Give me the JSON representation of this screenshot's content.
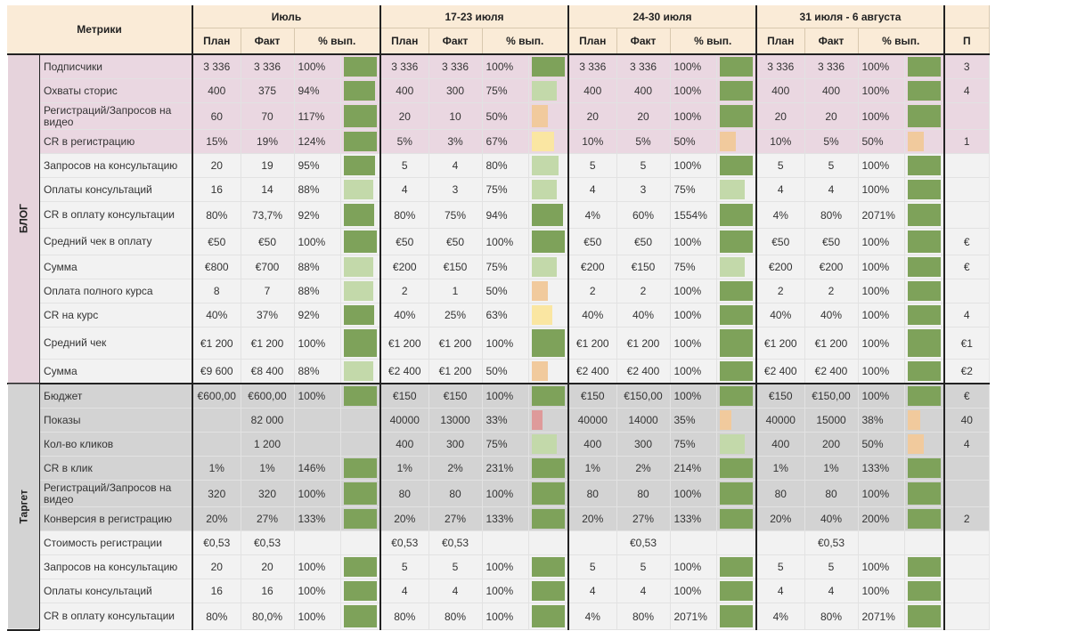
{
  "header": {
    "metrics_label": "Метрики",
    "periods": [
      "Июль",
      "17-23 июля",
      "24-30 июля",
      "31 июля - 6 августа",
      ""
    ],
    "plan_label": "План",
    "fact_label": "Факт",
    "pct_label": "% вып.",
    "partial_col": "П"
  },
  "colors": {
    "full": "#7ea25a",
    "light_green": "#c3d9aa",
    "peach": "#f1ca9d",
    "yellow": "#fae6a2",
    "red": "#de9a9a",
    "header_bg": "#faebd7",
    "blog_highlight": "#ead7e1",
    "target_highlight": "#d3d3d3"
  },
  "sections": [
    {
      "name": "БЛОГ",
      "rows": [
        {
          "label": "Подписчики",
          "hl": true,
          "cells": [
            [
              "3 336",
              "3 336",
              "100%",
              "full",
              1
            ],
            [
              "3 336",
              "3 336",
              "100%",
              "full",
              1
            ],
            [
              "3 336",
              "3 336",
              "100%",
              "full",
              1
            ],
            [
              "3 336",
              "3 336",
              "100%",
              "full",
              1
            ]
          ],
          "partial": "3"
        },
        {
          "label": "Охваты сторис",
          "hl": true,
          "cells": [
            [
              "400",
              "375",
              "94%",
              "full",
              0.94
            ],
            [
              "400",
              "300",
              "75%",
              "light_green",
              0.75
            ],
            [
              "400",
              "400",
              "100%",
              "full",
              1
            ],
            [
              "400",
              "400",
              "100%",
              "full",
              1
            ]
          ],
          "partial": "4"
        },
        {
          "label": "Регистраций/Запросов на видео",
          "hl": true,
          "tall": true,
          "cells": [
            [
              "60",
              "70",
              "117%",
              "full",
              1
            ],
            [
              "20",
              "10",
              "50%",
              "peach",
              0.5
            ],
            [
              "20",
              "20",
              "100%",
              "full",
              1
            ],
            [
              "20",
              "20",
              "100%",
              "full",
              1
            ]
          ],
          "partial": ""
        },
        {
          "label": "CR в регистрацию",
          "hl": true,
          "cells": [
            [
              "15%",
              "19%",
              "124%",
              "full",
              1
            ],
            [
              "5%",
              "3%",
              "67%",
              "yellow",
              0.67
            ],
            [
              "10%",
              "5%",
              "50%",
              "peach",
              0.5
            ],
            [
              "10%",
              "5%",
              "50%",
              "peach",
              0.5
            ]
          ],
          "partial": "1"
        },
        {
          "label": "Запросов на консультацию",
          "hl": false,
          "cells": [
            [
              "20",
              "19",
              "95%",
              "full",
              0.95
            ],
            [
              "5",
              "4",
              "80%",
              "light_green",
              0.8
            ],
            [
              "5",
              "5",
              "100%",
              "full",
              1
            ],
            [
              "5",
              "5",
              "100%",
              "full",
              1
            ]
          ],
          "partial": ""
        },
        {
          "label": "Оплаты консультаций",
          "hl": false,
          "cells": [
            [
              "16",
              "14",
              "88%",
              "light_green",
              0.88
            ],
            [
              "4",
              "3",
              "75%",
              "light_green",
              0.75
            ],
            [
              "4",
              "3",
              "75%",
              "light_green",
              0.75
            ],
            [
              "4",
              "4",
              "100%",
              "full",
              1
            ]
          ],
          "partial": ""
        },
        {
          "label": "CR в оплату консультации",
          "hl": false,
          "tall": true,
          "cells": [
            [
              "80%",
              "73,7%",
              "92%",
              "full",
              0.92
            ],
            [
              "80%",
              "75%",
              "94%",
              "full",
              0.94
            ],
            [
              "4%",
              "60%",
              "1554%",
              "full",
              1
            ],
            [
              "4%",
              "80%",
              "2071%",
              "full",
              1
            ]
          ],
          "partial": ""
        },
        {
          "label": "Средний чек в оплату",
          "hl": false,
          "tall": true,
          "cells": [
            [
              "€50",
              "€50",
              "100%",
              "full",
              1
            ],
            [
              "€50",
              "€50",
              "100%",
              "full",
              1
            ],
            [
              "€50",
              "€50",
              "100%",
              "full",
              1
            ],
            [
              "€50",
              "€50",
              "100%",
              "full",
              1
            ]
          ],
          "partial": "€"
        },
        {
          "label": "Сумма",
          "hl": false,
          "cells": [
            [
              "€800",
              "€700",
              "88%",
              "light_green",
              0.88
            ],
            [
              "€200",
              "€150",
              "75%",
              "light_green",
              0.75
            ],
            [
              "€200",
              "€150",
              "75%",
              "light_green",
              0.75
            ],
            [
              "€200",
              "€200",
              "100%",
              "full",
              1
            ]
          ],
          "partial": "€"
        },
        {
          "label": "Оплата полного курса",
          "hl": false,
          "cells": [
            [
              "8",
              "7",
              "88%",
              "light_green",
              0.88
            ],
            [
              "2",
              "1",
              "50%",
              "peach",
              0.5
            ],
            [
              "2",
              "2",
              "100%",
              "full",
              1
            ],
            [
              "2",
              "2",
              "100%",
              "full",
              1
            ]
          ],
          "partial": ""
        },
        {
          "label": "CR на курс",
          "hl": false,
          "cells": [
            [
              "40%",
              "37%",
              "92%",
              "full",
              0.92
            ],
            [
              "40%",
              "25%",
              "63%",
              "yellow",
              0.63
            ],
            [
              "40%",
              "40%",
              "100%",
              "full",
              1
            ],
            [
              "40%",
              "40%",
              "100%",
              "full",
              1
            ]
          ],
          "partial": "4"
        },
        {
          "label": "Средний чек",
          "hl": false,
          "xtall": true,
          "cells": [
            [
              "€1 200",
              "€1 200",
              "100%",
              "full",
              1
            ],
            [
              "€1 200",
              "€1 200",
              "100%",
              "full",
              1
            ],
            [
              "€1 200",
              "€1 200",
              "100%",
              "full",
              1
            ],
            [
              "€1 200",
              "€1 200",
              "100%",
              "full",
              1
            ]
          ],
          "partial": "€1"
        },
        {
          "label": "Сумма",
          "hl": false,
          "cells": [
            [
              "€9 600",
              "€8 400",
              "88%",
              "light_green",
              0.88
            ],
            [
              "€2 400",
              "€1 200",
              "50%",
              "peach",
              0.5
            ],
            [
              "€2 400",
              "€2 400",
              "100%",
              "full",
              1
            ],
            [
              "€2 400",
              "€2 400",
              "100%",
              "full",
              1
            ]
          ],
          "partial": "€2"
        }
      ]
    },
    {
      "name": "Таргет",
      "rows": [
        {
          "label": "Бюджет",
          "hl": true,
          "cells": [
            [
              "€600,00",
              "€600,00",
              "100%",
              "full",
              1
            ],
            [
              "€150",
              "€150",
              "100%",
              "full",
              1
            ],
            [
              "€150",
              "€150,00",
              "100%",
              "full",
              1
            ],
            [
              "€150",
              "€150,00",
              "100%",
              "full",
              1
            ]
          ],
          "partial": "€"
        },
        {
          "label": "Показы",
          "hl": true,
          "cells": [
            [
              "",
              "82 000",
              "",
              "",
              0
            ],
            [
              "40000",
              "13000",
              "33%",
              "red",
              0.33
            ],
            [
              "40000",
              "14000",
              "35%",
              "peach",
              0.35
            ],
            [
              "40000",
              "15000",
              "38%",
              "peach",
              0.38
            ]
          ],
          "partial": "40"
        },
        {
          "label": "Кол-во кликов",
          "hl": true,
          "cells": [
            [
              "",
              "1 200",
              "",
              "",
              0
            ],
            [
              "400",
              "300",
              "75%",
              "light_green",
              0.75
            ],
            [
              "400",
              "300",
              "75%",
              "light_green",
              0.75
            ],
            [
              "400",
              "200",
              "50%",
              "peach",
              0.5
            ]
          ],
          "partial": "4"
        },
        {
          "label": "CR в клик",
          "hl": true,
          "cells": [
            [
              "1%",
              "1%",
              "146%",
              "full",
              1
            ],
            [
              "1%",
              "2%",
              "231%",
              "full",
              1
            ],
            [
              "1%",
              "2%",
              "214%",
              "full",
              1
            ],
            [
              "1%",
              "1%",
              "133%",
              "full",
              1
            ]
          ],
          "partial": ""
        },
        {
          "label": "Регистраций/Запросов на видео",
          "hl": true,
          "tall": true,
          "cells": [
            [
              "320",
              "320",
              "100%",
              "full",
              1
            ],
            [
              "80",
              "80",
              "100%",
              "full",
              1
            ],
            [
              "80",
              "80",
              "100%",
              "full",
              1
            ],
            [
              "80",
              "80",
              "100%",
              "full",
              1
            ]
          ],
          "partial": ""
        },
        {
          "label": "Конверсия в регистрацию",
          "hl": true,
          "cells": [
            [
              "20%",
              "27%",
              "133%",
              "full",
              1
            ],
            [
              "20%",
              "27%",
              "133%",
              "full",
              1
            ],
            [
              "20%",
              "27%",
              "133%",
              "full",
              1
            ],
            [
              "20%",
              "40%",
              "200%",
              "full",
              1
            ]
          ],
          "partial": "2"
        },
        {
          "label": "Стоимость регистрации",
          "hl": false,
          "cells": [
            [
              "€0,53",
              "€0,53",
              "",
              "",
              0
            ],
            [
              "€0,53",
              "€0,53",
              "",
              "",
              0
            ],
            [
              "",
              "€0,53",
              "",
              "",
              0
            ],
            [
              "",
              "€0,53",
              "",
              "",
              0
            ]
          ],
          "partial": ""
        },
        {
          "label": "Запросов на консультацию",
          "hl": false,
          "cells": [
            [
              "20",
              "20",
              "100%",
              "full",
              1
            ],
            [
              "5",
              "5",
              "100%",
              "full",
              1
            ],
            [
              "5",
              "5",
              "100%",
              "full",
              1
            ],
            [
              "5",
              "5",
              "100%",
              "full",
              1
            ]
          ],
          "partial": ""
        },
        {
          "label": "Оплаты консультаций",
          "hl": false,
          "cells": [
            [
              "16",
              "16",
              "100%",
              "full",
              1
            ],
            [
              "4",
              "4",
              "100%",
              "full",
              1
            ],
            [
              "4",
              "4",
              "100%",
              "full",
              1
            ],
            [
              "4",
              "4",
              "100%",
              "full",
              1
            ]
          ],
          "partial": ""
        },
        {
          "label": "CR в оплату консультации",
          "hl": false,
          "tall": true,
          "cells": [
            [
              "80%",
              "80,0%",
              "100%",
              "full",
              1
            ],
            [
              "80%",
              "80%",
              "100%",
              "full",
              1
            ],
            [
              "4%",
              "80%",
              "2071%",
              "full",
              1
            ],
            [
              "4%",
              "80%",
              "2071%",
              "full",
              1
            ]
          ],
          "partial": ""
        }
      ]
    }
  ]
}
